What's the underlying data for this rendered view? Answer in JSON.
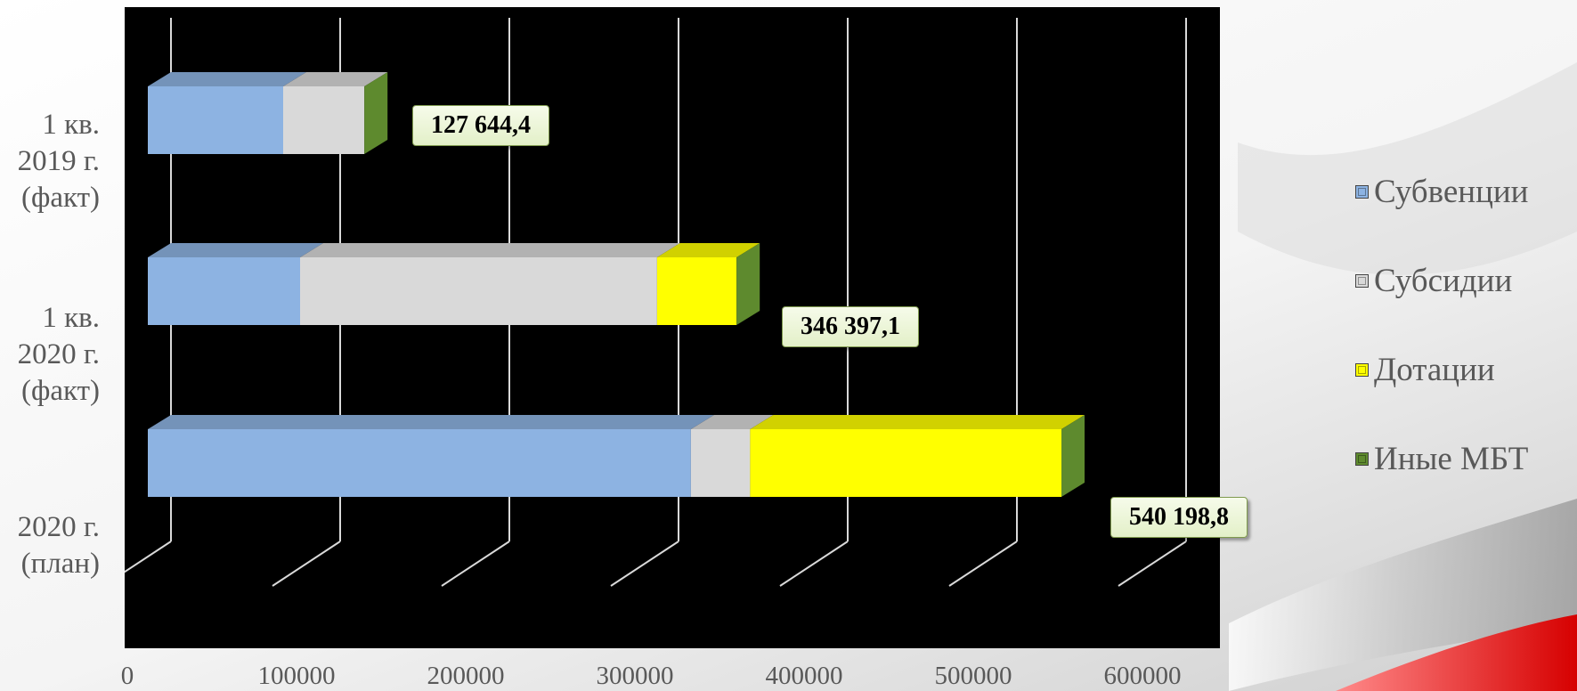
{
  "chart_data": {
    "type": "bar",
    "orientation": "horizontal",
    "stacked": true,
    "categories": [
      "1 кв.\n2019 г.\n(факт)",
      "1 кв.\n2020 г.\n(факт)",
      "2020 г.\n(план)"
    ],
    "series": [
      {
        "name": "Субвенции",
        "color": "#8db3e2",
        "values": [
          80000,
          90000,
          321000
        ]
      },
      {
        "name": "Субсидии",
        "color": "#d9d9d9",
        "values": [
          48000,
          211000,
          35000
        ]
      },
      {
        "name": "Дотации",
        "color": "#ffff00",
        "values": [
          0,
          47000,
          184000
        ]
      },
      {
        "name": "Иные МБТ",
        "color": "#5e8a2e",
        "values": [
          0,
          0,
          0
        ]
      }
    ],
    "totals": [
      "127 644,4",
      "346 397,1",
      "540 198,8"
    ],
    "x_ticks": [
      "0",
      "100000",
      "200000",
      "300000",
      "400000",
      "500000",
      "600000"
    ],
    "xlim": [
      0,
      600000
    ],
    "grid": true,
    "legend_position": "right",
    "background": "#000000"
  }
}
